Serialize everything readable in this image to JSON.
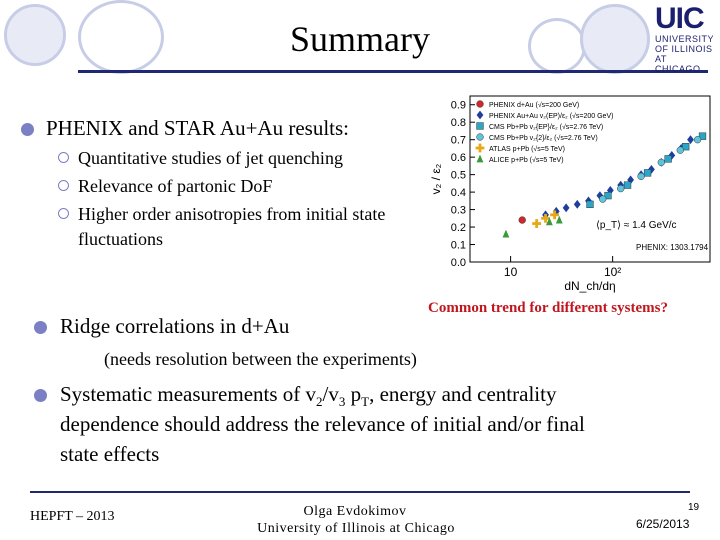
{
  "title": "Summary",
  "logo": {
    "name": "UIC",
    "line1": "UNIVERSITY",
    "line2": "OF ILLINOIS",
    "line3": "AT CHICAGO"
  },
  "bullets": [
    {
      "text": "PHENIX and STAR Au+Au results:"
    },
    {
      "text": "Ridge correlations in d+Au"
    },
    {
      "text_parts": [
        "Systematic measurements of v",
        "2",
        "/v",
        "3",
        " p",
        "T",
        ", energy and centrality"
      ],
      "line2": "dependence should address the relevance of initial and/or final",
      "line3": "state effects"
    }
  ],
  "sub_bullets": [
    {
      "text": "Quantitative studies of jet quenching"
    },
    {
      "text": "Relevance of partonic DoF"
    },
    {
      "text": "Higher order anisotropies from initial state"
    }
  ],
  "sub_bullet_continuation": "fluctuations",
  "note": "(needs resolution between the experiments)",
  "common_trend": "Common trend for different systems?",
  "footer": {
    "left": "HEPFT – 2013",
    "center_name": "Olga Evdokimov",
    "center_affil": "University of Illinois at Chicago",
    "page": "19",
    "date": "6/25/2013"
  },
  "colors": {
    "accent": "#1f2870",
    "bullet": "#7b80c4",
    "highlight": "#c0171e"
  },
  "chart_data": {
    "type": "scatter",
    "ylabel": "v₂ / ε₂",
    "xlabel": "dN_ch/dη",
    "x_scale": "log",
    "xlim": [
      4,
      900
    ],
    "ylim": [
      0,
      0.95
    ],
    "y_ticks": [
      0,
      0.1,
      0.2,
      0.3,
      0.4,
      0.5,
      0.6,
      0.7,
      0.8,
      0.9
    ],
    "y_tick_labels": [
      "0.0",
      "0.1",
      "0.2",
      "0.3",
      "0.4",
      "0.5",
      "0.6",
      "0.7",
      "0.8",
      "0.9"
    ],
    "x_tick_labels": [
      {
        "value": 10,
        "label": "10"
      },
      {
        "value": 100,
        "label": "10²"
      }
    ],
    "annotation": "⟨p_T⟩ ≈ 1.4 GeV/c",
    "reference": "PHENIX: 1303.1794",
    "series": [
      {
        "name": "PHENIX d+Au (√s=200 GeV)",
        "color": "#d62728",
        "marker": "circle",
        "points": [
          [
            13,
            0.24
          ]
        ]
      },
      {
        "name": "PHENIX Au+Au v₂(EP)/ε₂ (√s=200 GeV)",
        "color": "#1f3f9f",
        "marker": "diamond",
        "points": [
          [
            22,
            0.27
          ],
          [
            28,
            0.29
          ],
          [
            35,
            0.31
          ],
          [
            45,
            0.33
          ],
          [
            58,
            0.35
          ],
          [
            75,
            0.38
          ],
          [
            95,
            0.41
          ],
          [
            120,
            0.44
          ],
          [
            150,
            0.47
          ],
          [
            190,
            0.5
          ],
          [
            240,
            0.53
          ],
          [
            300,
            0.57
          ],
          [
            380,
            0.61
          ],
          [
            470,
            0.65
          ],
          [
            580,
            0.7
          ]
        ]
      },
      {
        "name": "CMS Pb+Pb v₂{EP}/ε₂ (√s=2.76 TeV)",
        "color": "#2ba5c9",
        "marker": "square",
        "points": [
          [
            60,
            0.33
          ],
          [
            90,
            0.38
          ],
          [
            140,
            0.44
          ],
          [
            220,
            0.51
          ],
          [
            350,
            0.59
          ],
          [
            520,
            0.66
          ],
          [
            760,
            0.72
          ]
        ]
      },
      {
        "name": "CMS Pb+Pb v₂{2}/ε₂ (√s=2.76 TeV)",
        "color": "#5fc3d9",
        "marker": "circle",
        "points": [
          [
            80,
            0.36
          ],
          [
            120,
            0.42
          ],
          [
            190,
            0.49
          ],
          [
            300,
            0.57
          ],
          [
            460,
            0.64
          ],
          [
            680,
            0.7
          ]
        ]
      },
      {
        "name": "ATLAS p+Pb (√s=5 TeV)",
        "color": "#e6a817",
        "marker": "plus",
        "points": [
          [
            18,
            0.22
          ],
          [
            22,
            0.25
          ],
          [
            27,
            0.27
          ]
        ]
      },
      {
        "name": "ALICE p+Pb (√s=5 TeV)",
        "color": "#3a9a3a",
        "marker": "triangle",
        "points": [
          [
            9,
            0.16
          ],
          [
            24,
            0.23
          ],
          [
            30,
            0.24
          ]
        ]
      }
    ]
  }
}
